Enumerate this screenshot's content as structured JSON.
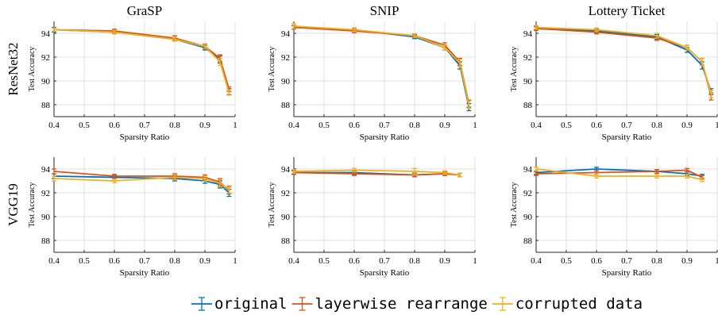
{
  "colors": {
    "original": "#0072BD",
    "layerwise": "#D95319",
    "corrupted": "#EDB120",
    "axis": "#262626",
    "grid": "#dfdfdf"
  },
  "legend": {
    "items": [
      {
        "label": "original",
        "color": "#0072BD"
      },
      {
        "label": "layerwise rearrange",
        "color": "#D95319"
      },
      {
        "label": "corrupted data",
        "color": "#EDB120"
      }
    ]
  },
  "chart_data": [
    {
      "type": "line",
      "column_title": "GraSP",
      "row_label": "ResNet32",
      "xlabel": "Sparsity Ratio",
      "ylabel": "Test Accuracy",
      "xlim": [
        0.4,
        1
      ],
      "ylim": [
        87,
        95
      ],
      "xticks": [
        0.4,
        0.5,
        0.6,
        0.7,
        0.8,
        0.9,
        1
      ],
      "xtick_labels": [
        "0.4",
        "0.5",
        "0.6",
        "0.7",
        "0.8",
        "0.9",
        "1"
      ],
      "yticks": [
        88,
        90,
        92,
        94
      ],
      "ytick_labels": [
        "88",
        "90",
        "92",
        "94"
      ],
      "grid": true,
      "x": [
        0.4,
        0.6,
        0.8,
        0.9,
        0.95,
        0.98
      ],
      "series": [
        {
          "name": "original",
          "values": [
            94.3,
            94.1,
            93.5,
            92.8,
            91.8,
            89.1
          ],
          "errors": [
            0.2,
            0.15,
            0.15,
            0.2,
            0.3,
            0.25
          ]
        },
        {
          "name": "layerwise rearrange",
          "values": [
            94.3,
            94.2,
            93.6,
            92.9,
            91.9,
            89.3
          ],
          "errors": [
            0.15,
            0.15,
            0.2,
            0.2,
            0.3,
            0.2
          ]
        },
        {
          "name": "corrupted data",
          "values": [
            94.3,
            94.1,
            93.5,
            92.9,
            91.6,
            89.0
          ],
          "errors": [
            0.15,
            0.15,
            0.15,
            0.15,
            0.3,
            0.2
          ]
        }
      ]
    },
    {
      "type": "line",
      "column_title": "SNIP",
      "row_label": "",
      "xlabel": "Sparsity Ratio",
      "ylabel": "Test Accuracy",
      "xlim": [
        0.4,
        1
      ],
      "ylim": [
        87,
        95
      ],
      "xticks": [
        0.4,
        0.5,
        0.6,
        0.7,
        0.8,
        0.9,
        1
      ],
      "xtick_labels": [
        "0.4",
        "0.5",
        "0.6",
        "0.7",
        "0.8",
        "0.9",
        "1"
      ],
      "yticks": [
        88,
        90,
        92,
        94
      ],
      "ytick_labels": [
        "88",
        "90",
        "92",
        "94"
      ],
      "grid": true,
      "x": [
        0.4,
        0.6,
        0.8,
        0.9,
        0.95,
        0.98
      ],
      "series": [
        {
          "name": "original",
          "values": [
            94.5,
            94.3,
            93.7,
            92.8,
            91.3,
            87.8
          ],
          "errors": [
            0.15,
            0.15,
            0.15,
            0.2,
            0.3,
            0.3
          ]
        },
        {
          "name": "layerwise rearrange",
          "values": [
            94.5,
            94.2,
            93.8,
            93.0,
            91.6,
            88.1
          ],
          "errors": [
            0.15,
            0.15,
            0.15,
            0.2,
            0.3,
            0.3
          ]
        },
        {
          "name": "corrupted data",
          "values": [
            94.6,
            94.3,
            93.8,
            92.8,
            91.5,
            88.0
          ],
          "errors": [
            0.2,
            0.15,
            0.15,
            0.2,
            0.3,
            0.3
          ]
        }
      ]
    },
    {
      "type": "line",
      "column_title": "Lottery Ticket",
      "row_label": "",
      "xlabel": "Sparsity Ratio",
      "ylabel": "Test Accuracy",
      "xlim": [
        0.4,
        1
      ],
      "ylim": [
        87,
        95
      ],
      "xticks": [
        0.4,
        0.5,
        0.6,
        0.7,
        0.8,
        0.9,
        1
      ],
      "xtick_labels": [
        "0.4",
        "0.5",
        "0.6",
        "0.7",
        "0.8",
        "0.9",
        "1"
      ],
      "yticks": [
        88,
        90,
        92,
        94
      ],
      "ytick_labels": [
        "88",
        "90",
        "92",
        "94"
      ],
      "grid": true,
      "x": [
        0.4,
        0.6,
        0.8,
        0.9,
        0.95,
        0.98
      ],
      "series": [
        {
          "name": "original",
          "values": [
            94.4,
            94.2,
            93.7,
            92.6,
            91.3,
            89.1
          ],
          "errors": [
            0.15,
            0.15,
            0.2,
            0.2,
            0.3,
            0.25
          ]
        },
        {
          "name": "layerwise rearrange",
          "values": [
            94.4,
            94.1,
            93.6,
            92.8,
            91.6,
            88.7
          ],
          "errors": [
            0.15,
            0.15,
            0.2,
            0.2,
            0.3,
            0.3
          ]
        },
        {
          "name": "corrupted data",
          "values": [
            94.5,
            94.3,
            93.8,
            92.8,
            91.6,
            88.9
          ],
          "errors": [
            0.15,
            0.15,
            0.2,
            0.2,
            0.3,
            0.3
          ]
        }
      ]
    },
    {
      "type": "line",
      "column_title": "",
      "row_label": "VGG19",
      "xlabel": "Sparsity Ratio",
      "ylabel": "Test Accuracy",
      "xlim": [
        0.4,
        1
      ],
      "ylim": [
        87,
        95
      ],
      "xticks": [
        0.4,
        0.5,
        0.6,
        0.7,
        0.8,
        0.9,
        1
      ],
      "xtick_labels": [
        "0.4",
        "0.5",
        "0.6",
        "0.7",
        "0.8",
        "0.9",
        "1"
      ],
      "yticks": [
        88,
        90,
        92,
        94
      ],
      "ytick_labels": [
        "88",
        "90",
        "92",
        "94"
      ],
      "grid": true,
      "x": [
        0.4,
        0.6,
        0.8,
        0.9,
        0.95,
        0.98
      ],
      "series": [
        {
          "name": "original",
          "values": [
            93.4,
            93.3,
            93.2,
            93.0,
            92.7,
            92.0
          ],
          "errors": [
            0.2,
            0.15,
            0.2,
            0.2,
            0.3,
            0.3
          ]
        },
        {
          "name": "layerwise rearrange",
          "values": [
            93.8,
            93.4,
            93.4,
            93.3,
            92.9,
            92.2
          ],
          "errors": [
            0.2,
            0.15,
            0.2,
            0.2,
            0.3,
            0.3
          ]
        },
        {
          "name": "corrupted data",
          "values": [
            93.2,
            93.0,
            93.3,
            93.2,
            92.8,
            92.3
          ],
          "errors": [
            0.2,
            0.15,
            0.2,
            0.2,
            0.3,
            0.3
          ]
        }
      ]
    },
    {
      "type": "line",
      "column_title": "",
      "row_label": "",
      "xlabel": "Sparsity Ratio",
      "ylabel": "Test Accuracy",
      "xlim": [
        0.4,
        1
      ],
      "ylim": [
        87,
        95
      ],
      "xticks": [
        0.4,
        0.5,
        0.6,
        0.7,
        0.8,
        0.9,
        1
      ],
      "xtick_labels": [
        "0.4",
        "0.5",
        "0.6",
        "0.7",
        "0.8",
        "0.9",
        "1"
      ],
      "yticks": [
        88,
        90,
        92,
        94
      ],
      "ytick_labels": [
        "88",
        "90",
        "92",
        "94"
      ],
      "grid": true,
      "x": [
        0.4,
        0.6,
        0.8,
        0.9,
        0.95
      ],
      "series": [
        {
          "name": "original",
          "values": [
            93.7,
            93.7,
            93.5,
            93.6,
            93.5
          ],
          "errors": [
            0.15,
            0.15,
            0.15,
            0.15,
            0.15
          ]
        },
        {
          "name": "layerwise rearrange",
          "values": [
            93.7,
            93.6,
            93.5,
            93.6,
            93.5
          ],
          "errors": [
            0.15,
            0.15,
            0.15,
            0.15,
            0.15
          ]
        },
        {
          "name": "corrupted data",
          "values": [
            93.8,
            93.9,
            93.8,
            93.7,
            93.5
          ],
          "errors": [
            0.15,
            0.15,
            0.25,
            0.15,
            0.15
          ]
        }
      ]
    },
    {
      "type": "line",
      "column_title": "",
      "row_label": "",
      "xlabel": "Sparsity Ratio",
      "ylabel": "Test Accuracy",
      "xlim": [
        0.4,
        1
      ],
      "ylim": [
        87,
        95
      ],
      "xticks": [
        0.4,
        0.5,
        0.6,
        0.7,
        0.8,
        0.9,
        1
      ],
      "xtick_labels": [
        "0.4",
        "0.5",
        "0.6",
        "0.7",
        "0.8",
        "0.9",
        "1"
      ],
      "yticks": [
        88,
        90,
        92,
        94
      ],
      "ytick_labels": [
        "88",
        "90",
        "92",
        "94"
      ],
      "grid": true,
      "x": [
        0.4,
        0.6,
        0.8,
        0.9,
        0.95
      ],
      "series": [
        {
          "name": "original",
          "values": [
            93.7,
            94.0,
            93.8,
            93.6,
            93.4
          ],
          "errors": [
            0.15,
            0.15,
            0.15,
            0.15,
            0.15
          ]
        },
        {
          "name": "layerwise rearrange",
          "values": [
            93.6,
            93.7,
            93.8,
            93.9,
            93.3
          ],
          "errors": [
            0.15,
            0.15,
            0.15,
            0.15,
            0.15
          ]
        },
        {
          "name": "corrupted data",
          "values": [
            94.0,
            93.4,
            93.4,
            93.4,
            93.1
          ],
          "errors": [
            0.15,
            0.15,
            0.15,
            0.15,
            0.15
          ]
        }
      ]
    }
  ]
}
